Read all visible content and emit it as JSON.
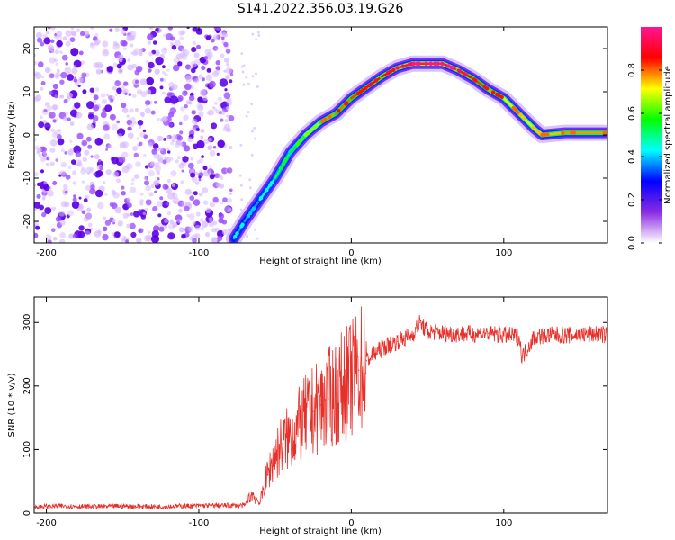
{
  "figure": {
    "title": "S141.2022.356.03.19.G26"
  },
  "chart_data": [
    {
      "type": "heatmap",
      "title": "S141.2022.356.03.19.G26",
      "xlabel": "Height of straight line (km)",
      "ylabel": "Frequency (Hz)",
      "xlim": [
        -208,
        168
      ],
      "ylim": [
        -25,
        25
      ],
      "x_ticks": [
        -200,
        -100,
        0,
        100
      ],
      "x_tick_labels": [
        "-200",
        "-100",
        "0",
        "100"
      ],
      "y_ticks": [
        -20,
        -10,
        0,
        10,
        20
      ],
      "y_tick_labels": [
        "-20",
        "-10",
        "0",
        "10",
        "20"
      ],
      "colorbar": {
        "label": "Normalized spectral amplitude",
        "range": [
          0,
          1
        ],
        "ticks": [
          0.0,
          0.2,
          0.4,
          0.6,
          0.8
        ],
        "tick_labels": [
          "0.0",
          "0.2",
          "0.4",
          "0.6",
          "0.8"
        ],
        "colormap": [
          "#ffffff",
          "#8a2be2",
          "#0000ff",
          "#00ffff",
          "#00ff00",
          "#ffff00",
          "#ff0000",
          "#ff1493"
        ]
      },
      "noise_region_x": [
        -208,
        -78
      ],
      "ridge": {
        "x": [
          -77,
          -70,
          -60,
          -50,
          -40,
          -30,
          -20,
          -10,
          0,
          10,
          20,
          30,
          40,
          50,
          60,
          70,
          80,
          90,
          100,
          110,
          120,
          125,
          140,
          168
        ],
        "freq": [
          -24,
          -20,
          -15,
          -10,
          -4,
          0,
          3,
          5,
          8.5,
          11,
          13.5,
          15.5,
          16.5,
          16.5,
          16.5,
          15,
          13,
          10.5,
          8.5,
          5,
          1.5,
          0,
          0.5,
          0.5
        ],
        "amplitude": [
          0.4,
          0.35,
          0.4,
          0.5,
          0.55,
          0.6,
          0.75,
          0.8,
          0.8,
          0.85,
          0.85,
          0.9,
          0.95,
          0.95,
          0.95,
          0.9,
          0.85,
          0.8,
          0.75,
          0.7,
          0.7,
          0.75,
          0.75,
          0.8
        ]
      }
    },
    {
      "type": "line",
      "xlabel": "Height of straight line (km)",
      "ylabel": "SNR (10 * v/v)",
      "xlim": [
        -208,
        168
      ],
      "ylim": [
        0,
        340
      ],
      "x_ticks": [
        -200,
        -100,
        0,
        100
      ],
      "x_tick_labels": [
        "-200",
        "-100",
        "0",
        "100"
      ],
      "y_ticks": [
        0,
        100,
        200,
        300
      ],
      "y_tick_labels": [
        "0",
        "100",
        "200",
        "300"
      ],
      "color": "#e8302a",
      "x": [
        -208,
        -190,
        -170,
        -150,
        -130,
        -110,
        -90,
        -80,
        -70,
        -65,
        -60,
        -55,
        -50,
        -45,
        -40,
        -35,
        -30,
        -25,
        -20,
        -15,
        -10,
        -5,
        0,
        5,
        10,
        15,
        20,
        25,
        30,
        35,
        40,
        45,
        50,
        55,
        60,
        70,
        80,
        90,
        100,
        110,
        112,
        120,
        130,
        140,
        150,
        160,
        168
      ],
      "y": [
        10,
        11,
        10,
        11,
        10,
        11,
        12,
        12,
        12,
        30,
        15,
        60,
        90,
        110,
        120,
        135,
        150,
        160,
        170,
        180,
        190,
        200,
        210,
        225,
        240,
        250,
        260,
        265,
        270,
        275,
        280,
        300,
        285,
        285,
        283,
        282,
        282,
        283,
        280,
        278,
        245,
        278,
        280,
        280,
        280,
        282,
        280
      ]
    }
  ]
}
